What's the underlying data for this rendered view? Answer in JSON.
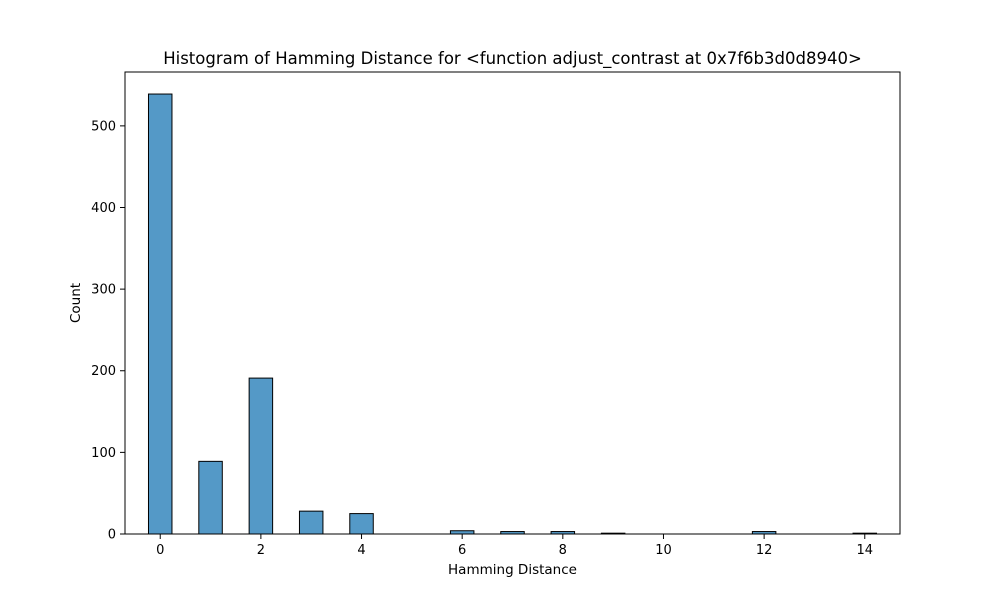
{
  "chart_data": {
    "type": "bar",
    "title": "Histogram of Hamming Distance for <function adjust_contrast at 0x7f6b3d0d8940>",
    "xlabel": "Hamming Distance",
    "ylabel": "Count",
    "xlim": [
      -0.7,
      14.7
    ],
    "ylim": [
      0,
      566
    ],
    "x_ticks": [
      0,
      2,
      4,
      6,
      8,
      10,
      12,
      14
    ],
    "y_ticks": [
      0,
      100,
      200,
      300,
      400,
      500
    ],
    "bin_width": 0.4667,
    "bins": [
      {
        "x": 0,
        "count": 539
      },
      {
        "x": 1,
        "count": 89
      },
      {
        "x": 2,
        "count": 191
      },
      {
        "x": 3,
        "count": 28
      },
      {
        "x": 4,
        "count": 25
      },
      {
        "x": 6,
        "count": 4
      },
      {
        "x": 7,
        "count": 3
      },
      {
        "x": 8,
        "count": 3
      },
      {
        "x": 9,
        "count": 1
      },
      {
        "x": 12,
        "count": 3
      },
      {
        "x": 14,
        "count": 1
      }
    ],
    "bar_color": "#5499c7",
    "edge_color": "#000000",
    "grid": false,
    "legend": "none"
  }
}
